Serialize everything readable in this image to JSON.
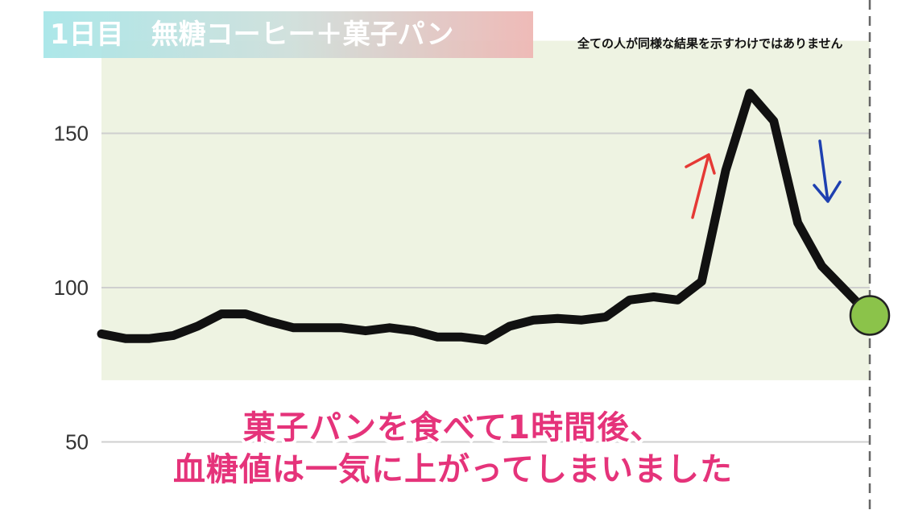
{
  "title": "1日目　無糖コーヒー＋菓子パン",
  "note": "全ての人が同様な結果を示すわけではありません",
  "caption": {
    "line1": "菓子パンを食べて1時間後、",
    "line2": "血糖値は一気に上がってしまいました"
  },
  "colors": {
    "line": "#111111",
    "target_band": "#eef3e2",
    "current_marker": "#8bc34a",
    "up_arrow": "#e53935",
    "down_arrow": "#1e40b0",
    "caption": "#e5337a"
  },
  "chart_data": {
    "type": "line",
    "title": "",
    "xlabel": "",
    "ylabel": "",
    "ylim": [
      35,
      180
    ],
    "yticks": [
      50,
      100,
      150
    ],
    "ytick_labels": [
      "50",
      "100",
      "150"
    ],
    "grid": "horizontal",
    "target_range": [
      70,
      180
    ],
    "series": [
      {
        "values": [
          85,
          83.5,
          83.5,
          84.5,
          87.5,
          91.5,
          91.5,
          89,
          87,
          87,
          87,
          86,
          87,
          86,
          84,
          84,
          83,
          87.5,
          89.5,
          90,
          89.5,
          90.5,
          96,
          97,
          96,
          102,
          138,
          163,
          154,
          121,
          107,
          99,
          91
        ]
      }
    ],
    "current_value_marker": 91,
    "annotations": [
      "up-arrow",
      "down-arrow"
    ]
  }
}
